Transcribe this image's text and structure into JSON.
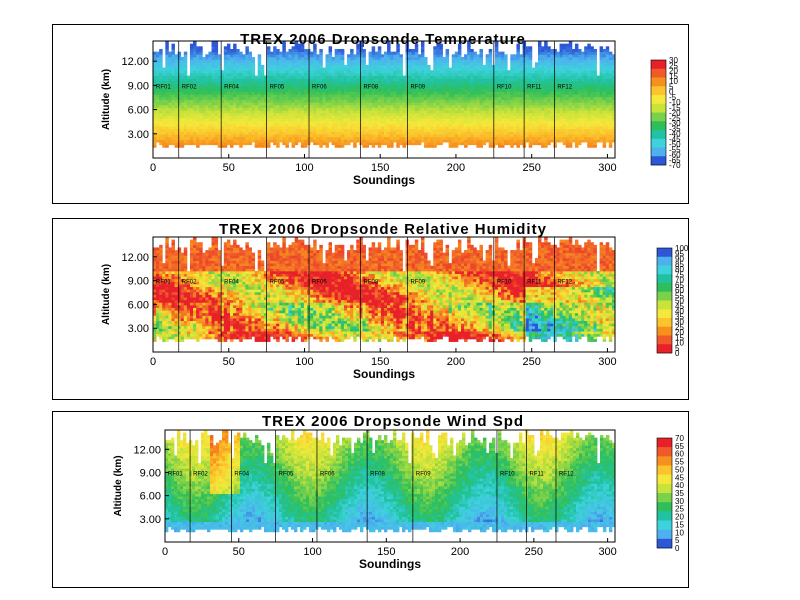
{
  "chart_data": [
    {
      "type": "heatmap",
      "title": "TREX 2006 Dropsonde Temperature",
      "xlabel": "Soundings",
      "ylabel": "Altitude (km)",
      "xlim": [
        0,
        305
      ],
      "ylim": [
        0,
        14.5
      ],
      "x_ticks": [
        "0",
        "50",
        "100",
        "150",
        "200",
        "250",
        "300"
      ],
      "y_ticks": [
        "3.00",
        "6.00",
        "9.00",
        "12.00"
      ],
      "flights": [
        {
          "name": "RF01",
          "start": 0
        },
        {
          "name": "RF02",
          "start": 17
        },
        {
          "name": "RF04",
          "start": 45
        },
        {
          "name": "RF05",
          "start": 75
        },
        {
          "name": "RF06",
          "start": 103
        },
        {
          "name": "RF08",
          "start": 137
        },
        {
          "name": "RF09",
          "start": 168
        },
        {
          "name": "RF10",
          "start": 225
        },
        {
          "name": "RF11",
          "start": 245
        },
        {
          "name": "RF12",
          "start": 265
        }
      ],
      "colorbar": {
        "labels": [
          "30",
          "25",
          "20",
          "15",
          "10",
          "5",
          "0",
          "-5",
          "-10",
          "-15",
          "-20",
          "-25",
          "-30",
          "-35",
          "-40",
          "-45",
          "-50",
          "-55",
          "-60",
          "-65",
          "-70"
        ],
        "colors": [
          "#e8202a",
          "#f05a2b",
          "#f7911e",
          "#fbc42c",
          "#f5e83b",
          "#c9e33a",
          "#7ad14a",
          "#2fbf5a",
          "#21c2a2",
          "#3ed3dc",
          "#4db1ee",
          "#2d57d6"
        ]
      }
    },
    {
      "type": "heatmap",
      "title": "TREX 2006 Dropsonde Relative Humidity",
      "xlabel": "Soundings",
      "ylabel": "Altitude (km)",
      "xlim": [
        0,
        305
      ],
      "ylim": [
        0,
        14.5
      ],
      "x_ticks": [
        "0",
        "50",
        "100",
        "150",
        "200",
        "250",
        "300"
      ],
      "y_ticks": [
        "3.00",
        "6.00",
        "9.00",
        "12.00"
      ],
      "flights": [
        {
          "name": "RF01",
          "start": 0
        },
        {
          "name": "RF02",
          "start": 17
        },
        {
          "name": "RF04",
          "start": 45
        },
        {
          "name": "RF05",
          "start": 75
        },
        {
          "name": "RF06",
          "start": 103
        },
        {
          "name": "RF08",
          "start": 137
        },
        {
          "name": "RF09",
          "start": 168
        },
        {
          "name": "RF10",
          "start": 225
        },
        {
          "name": "RF11",
          "start": 245
        },
        {
          "name": "RF12",
          "start": 265
        }
      ],
      "colorbar": {
        "labels": [
          "100",
          "95",
          "90",
          "85",
          "80",
          "75",
          "70",
          "65",
          "60",
          "55",
          "50",
          "45",
          "40",
          "35",
          "30",
          "25",
          "20",
          "15",
          "10",
          "5",
          "0"
        ],
        "colors": [
          "#2d57d6",
          "#4db1ee",
          "#3ed3dc",
          "#21c2a2",
          "#2fbf5a",
          "#7ad14a",
          "#c9e33a",
          "#f5e83b",
          "#fbc42c",
          "#f7911e",
          "#f05a2b",
          "#e8202a"
        ]
      }
    },
    {
      "type": "heatmap",
      "title": "TREX 2006 Dropsonde Wind Spd",
      "xlabel": "Soundings",
      "ylabel": "Altitude (km)",
      "xlim": [
        0,
        305
      ],
      "ylim": [
        0,
        14.5
      ],
      "x_ticks": [
        "0",
        "50",
        "100",
        "150",
        "200",
        "250",
        "300"
      ],
      "y_ticks": [
        "3.00",
        "6.00",
        "9.00",
        "12.00"
      ],
      "flights": [
        {
          "name": "RF01",
          "start": 0
        },
        {
          "name": "RF02",
          "start": 17
        },
        {
          "name": "RF04",
          "start": 45
        },
        {
          "name": "RF05",
          "start": 75
        },
        {
          "name": "RF06",
          "start": 103
        },
        {
          "name": "RF08",
          "start": 137
        },
        {
          "name": "RF09",
          "start": 168
        },
        {
          "name": "RF10",
          "start": 225
        },
        {
          "name": "RF11",
          "start": 245
        },
        {
          "name": "RF12",
          "start": 265
        }
      ],
      "colorbar": {
        "labels": [
          "70",
          "65",
          "60",
          "55",
          "50",
          "45",
          "40",
          "35",
          "30",
          "25",
          "20",
          "15",
          "10",
          "5",
          "0"
        ],
        "colors": [
          "#e8202a",
          "#f05a2b",
          "#f7911e",
          "#fbc42c",
          "#f5e83b",
          "#c9e33a",
          "#7ad14a",
          "#2fbf5a",
          "#21c2a2",
          "#3ed3dc",
          "#4db1ee",
          "#2d57d6"
        ]
      }
    }
  ]
}
